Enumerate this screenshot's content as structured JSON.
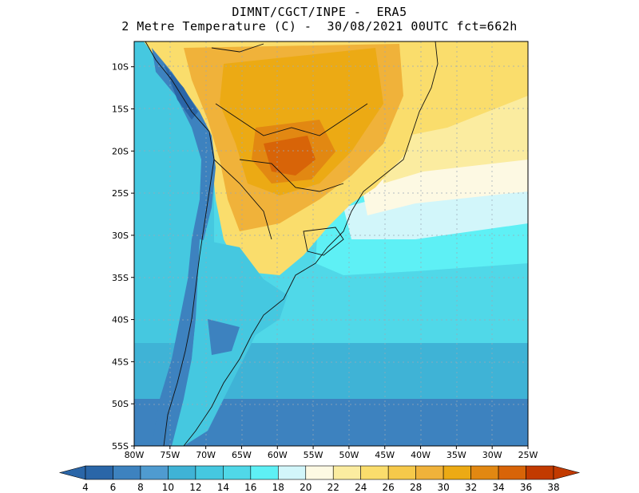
{
  "title": {
    "line1": "DIMNT/CGCT/INPE -  ERA5",
    "line2": "2 Metre Temperature (C) -  30/08/2021 00UTC fct=662h"
  },
  "map": {
    "region": "South America (southern part)",
    "lon_range": [
      -80,
      -25
    ],
    "lat_range": [
      -55,
      -7
    ],
    "x_ticks": [
      "80W",
      "75W",
      "70W",
      "65W",
      "60W",
      "55W",
      "50W",
      "45W",
      "40W",
      "35W",
      "30W",
      "25W"
    ],
    "y_ticks": [
      "10S",
      "15S",
      "20S",
      "25S",
      "30S",
      "35S",
      "40S",
      "45S",
      "50S",
      "55S"
    ],
    "gridlines": "dotted"
  },
  "colorbar": {
    "labels": [
      "4",
      "6",
      "8",
      "10",
      "12",
      "14",
      "16",
      "18",
      "20",
      "22",
      "24",
      "26",
      "28",
      "30",
      "32",
      "34",
      "36",
      "38"
    ],
    "colors": [
      "#2a66a8",
      "#3d82bf",
      "#4f9bd0",
      "#3fb3d6",
      "#45c8e0",
      "#50d8e8",
      "#5ef0f5",
      "#d2f6fa",
      "#fdf9e3",
      "#fbeca0",
      "#fadd6c",
      "#f6c94a",
      "#f0b23a",
      "#ecaa14",
      "#e28812",
      "#d86408",
      "#c23a00"
    ],
    "low_color": "#2a66a8",
    "high_color": "#c23a00"
  }
}
